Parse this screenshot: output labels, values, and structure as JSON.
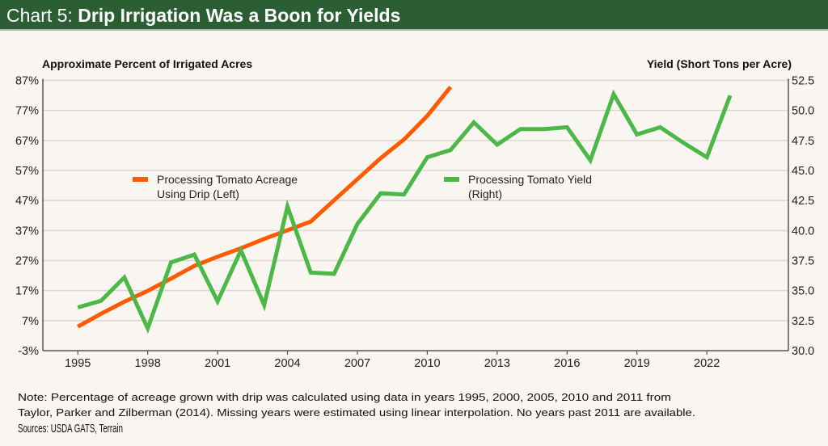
{
  "header": {
    "prefix": "Chart 5:",
    "title": "Drip Irrigation Was a Boon for Yields"
  },
  "chart_data": {
    "type": "line",
    "title": "Chart 5: Drip Irrigation Was a Boon for Yields",
    "left_axis": {
      "label": "Approximate Percent of Irrigated Acres",
      "range": [
        -3,
        87
      ],
      "ticks": [
        "87%",
        "77%",
        "67%",
        "57%",
        "47%",
        "37%",
        "27%",
        "17%",
        "7%",
        "-3%"
      ],
      "tick_values": [
        87,
        77,
        67,
        57,
        47,
        37,
        27,
        17,
        7,
        -3
      ]
    },
    "right_axis": {
      "label": "Yield (Short Tons per Acre)",
      "range": [
        30.0,
        52.5
      ],
      "ticks": [
        "52.5",
        "50.0",
        "47.5",
        "45.0",
        "42.5",
        "40.0",
        "37.5",
        "35.0",
        "32.5",
        "30.0"
      ],
      "tick_values": [
        52.5,
        50,
        47.5,
        45,
        42.5,
        40,
        37.5,
        35,
        32.5,
        30
      ]
    },
    "x_axis": {
      "range": [
        1995,
        2025.5
      ],
      "ticks": [
        "1995",
        "1998",
        "2001",
        "2004",
        "2007",
        "2010",
        "2013",
        "2016",
        "2019",
        "2022"
      ],
      "tick_values": [
        1995,
        1998,
        2001,
        2004,
        2007,
        2010,
        2013,
        2016,
        2019,
        2022
      ]
    },
    "grid": true,
    "series": [
      {
        "name": "Processing Tomato Acreage Using Drip (Left)",
        "legend_lines": [
          "Processing Tomato Acreage",
          "Using Drip (Left)"
        ],
        "axis": "left",
        "color": "#ff5a00",
        "x": [
          1995,
          1996,
          1997,
          1998,
          1999,
          2000,
          2001,
          2002,
          2003,
          2004,
          2005,
          2006,
          2007,
          2008,
          2009,
          2010,
          2011
        ],
        "y": [
          5.0,
          9.3,
          13.3,
          16.9,
          21.0,
          25.2,
          28.3,
          31.1,
          34.2,
          37.1,
          40.0,
          47.1,
          54.1,
          61.1,
          67.3,
          75.2,
          84.8
        ]
      },
      {
        "name": "Processing Tomato Yield (Right)",
        "legend_lines": [
          "Processing Tomato Yield",
          "(Right)"
        ],
        "axis": "right",
        "color": "#4cb848",
        "x": [
          1995,
          1996,
          1997,
          1998,
          1999,
          2000,
          2001,
          2002,
          2003,
          2004,
          2005,
          2006,
          2007,
          2008,
          2009,
          2010,
          2011,
          2012,
          2013,
          2014,
          2015,
          2016,
          2017,
          2018,
          2019,
          2020,
          2021,
          2022,
          2023
        ],
        "y": [
          33.6,
          34.15,
          36.1,
          31.85,
          37.35,
          38.0,
          34.1,
          38.35,
          33.8,
          42.0,
          36.5,
          36.4,
          40.55,
          43.1,
          43.0,
          46.1,
          46.7,
          49.0,
          47.15,
          48.45,
          48.45,
          48.6,
          45.85,
          51.35,
          48.0,
          48.6,
          47.3,
          46.1,
          51.25
        ]
      }
    ]
  },
  "footer": {
    "note_line1": "Note: Percentage of acreage grown with drip was calculated using data in years 1995, 2000, 2005, 2010 and 2011 from",
    "note_line2": "Taylor, Parker and Zilberman (2014). Missing years were estimated using linear interpolation. No years past 2011 are available.",
    "sources": "Sources: USDA GATS, Terrain"
  }
}
